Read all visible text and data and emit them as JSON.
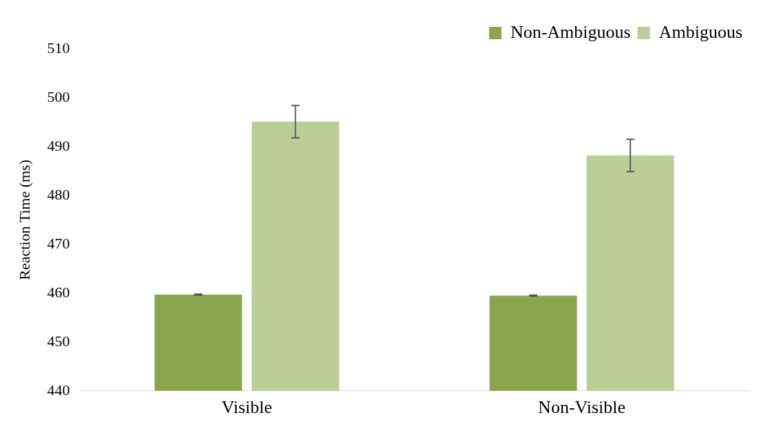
{
  "chart_data": {
    "type": "bar",
    "ylabel": "Reaction Time (ms)",
    "categories": [
      "Visible",
      "Non-Visible"
    ],
    "series": [
      {
        "name": "Non-Ambiguous",
        "color": "#8aa64d",
        "values": [
          459.7,
          459.5
        ],
        "errors": [
          0.1,
          0.1
        ]
      },
      {
        "name": "Ambiguous",
        "color": "#bacf98",
        "values": [
          495.1,
          488.2
        ],
        "errors": [
          3.3,
          3.3
        ]
      }
    ],
    "ylim": [
      440,
      510
    ],
    "yticks": [
      440,
      450,
      460,
      470,
      480,
      490,
      500,
      510
    ],
    "grid": false,
    "legend": "top right"
  }
}
